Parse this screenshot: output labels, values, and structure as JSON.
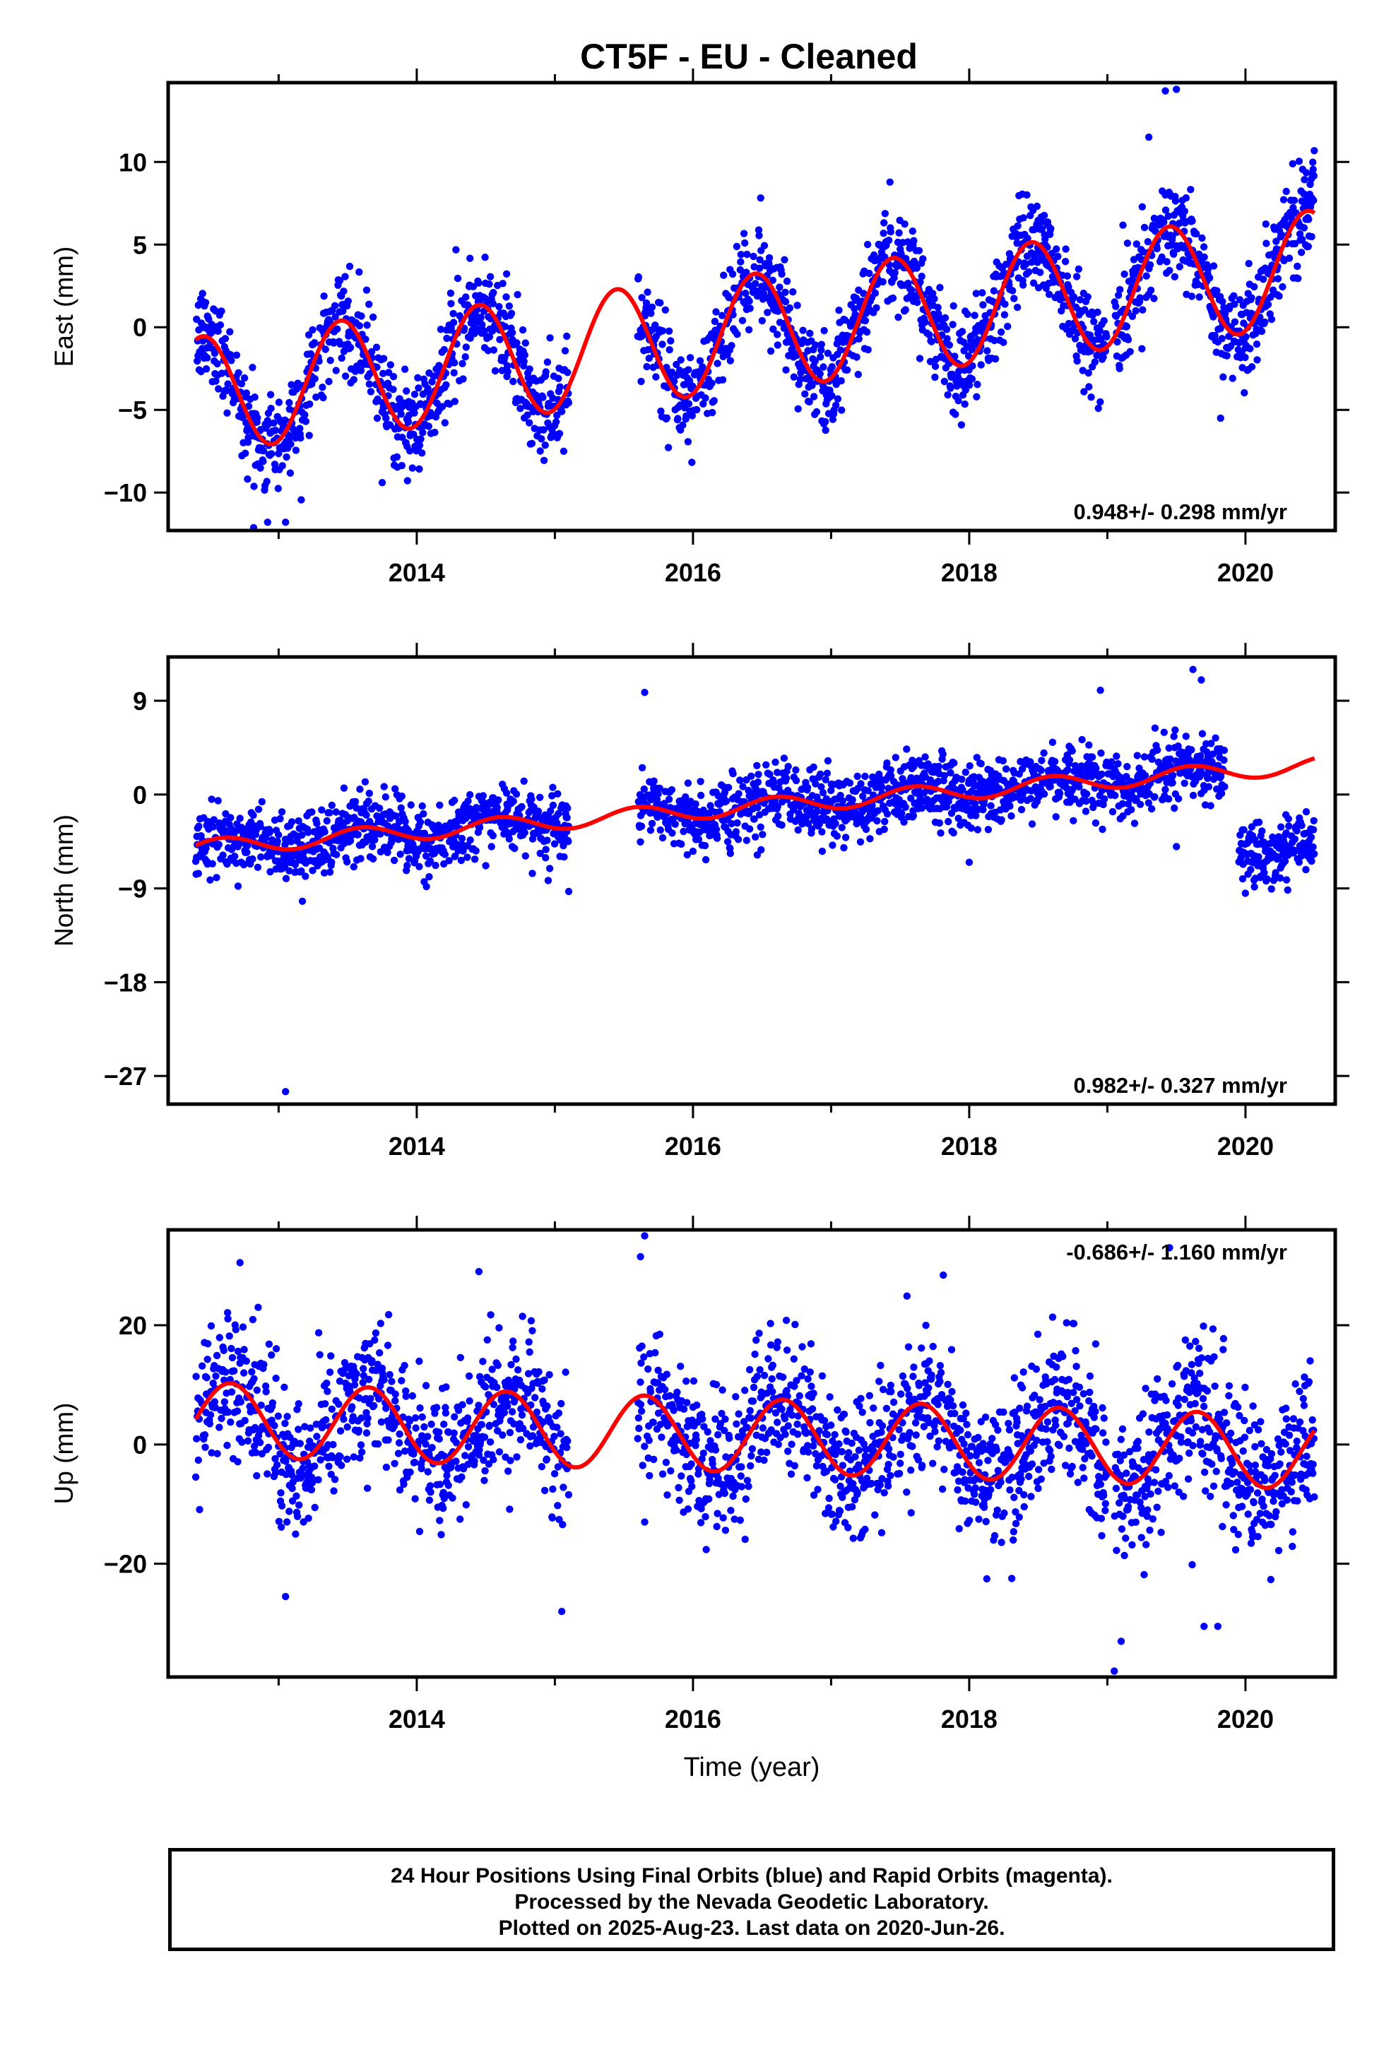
{
  "title": "CT5F  - EU - Cleaned",
  "xlabel": "Time (year)",
  "footer": {
    "line1": "24 Hour Positions Using Final Orbits (blue) and Rapid Orbits (magenta).",
    "line2": "Processed by the Nevada Geodetic Laboratory.",
    "line3": "Plotted on 2025-Aug-23. Last data on 2020-Jun-26."
  },
  "colors": {
    "points": "#0000ff",
    "fit": "#ff0000",
    "axes": "#000000"
  },
  "chart_data": [
    {
      "type": "scatter",
      "ylabel": "East (mm)",
      "rate": "0.948+/- 0.298 mm/yr",
      "rate_position": "bottom-right",
      "xlim": [
        2012.2,
        2020.65
      ],
      "ylim": [
        -12.3,
        14.8
      ],
      "xticks": [
        2014,
        2016,
        2018,
        2020
      ],
      "yticks": [
        -10,
        -5,
        0,
        5,
        10
      ],
      "yticklabels": [
        "−10",
        "−5",
        "0",
        "5",
        "10"
      ],
      "fit": {
        "offset": -0.3,
        "rate": 0.948,
        "amplitude": 3.5,
        "peak_phase": 0.45,
        "x_start": 2012.4,
        "x_end": 2020.5
      },
      "scatter_segments": [
        [
          2012.4,
          2015.1
        ],
        [
          2015.6,
          2019.0
        ],
        [
          2019.05,
          2020.5
        ]
      ],
      "scatter_sigma": 1.5,
      "outliers": [
        {
          "x": 2012.92,
          "y": -11.8
        },
        {
          "x": 2013.05,
          "y": -11.8
        },
        {
          "x": 2019.42,
          "y": 14.3
        },
        {
          "x": 2019.5,
          "y": 14.4
        },
        {
          "x": 2019.3,
          "y": 11.5
        },
        {
          "x": 2019.82,
          "y": -5.5
        },
        {
          "x": 2013.75,
          "y": -9.4
        },
        {
          "x": 2019.25,
          "y": -1.3
        }
      ]
    },
    {
      "type": "scatter",
      "ylabel": "North (mm)",
      "rate": "0.982+/- 0.327 mm/yr",
      "rate_position": "bottom-right",
      "xlim": [
        2012.2,
        2020.65
      ],
      "ylim": [
        -29.7,
        13.2
      ],
      "xticks": [
        2014,
        2016,
        2018,
        2020
      ],
      "yticks": [
        -27,
        -18,
        -9,
        0,
        9
      ],
      "yticklabels": [
        "−27",
        "−18",
        "−9",
        "0",
        "9"
      ],
      "fit": {
        "offset": -1.2,
        "rate": 0.982,
        "amplitude": 0.8,
        "peak_phase": 0.6,
        "x_start": 2012.4,
        "x_end": 2020.5
      },
      "scatter_segments": [
        [
          2012.4,
          2015.1
        ],
        [
          2015.6,
          2019.85
        ],
        [
          2019.95,
          2020.5
        ]
      ],
      "scatter_sigma": 1.6,
      "level_shift": {
        "x": 2019.92,
        "amount": -7.5
      },
      "outliers": [
        {
          "x": 2013.05,
          "y": -28.5
        },
        {
          "x": 2015.65,
          "y": 9.8
        },
        {
          "x": 2018.0,
          "y": -6.5
        },
        {
          "x": 2018.95,
          "y": 10.0
        },
        {
          "x": 2019.62,
          "y": 12.0
        },
        {
          "x": 2019.68,
          "y": 11.0
        },
        {
          "x": 2015.1,
          "y": -9.3
        },
        {
          "x": 2019.5,
          "y": -5.0
        }
      ]
    },
    {
      "type": "scatter",
      "ylabel": "Up (mm)",
      "rate": "-0.686+/- 1.160 mm/yr",
      "rate_position": "top-right",
      "xlim": [
        2012.2,
        2020.65
      ],
      "ylim": [
        -39.0,
        36.0
      ],
      "xticks": [
        2014,
        2016,
        2018,
        2020
      ],
      "yticks": [
        -20,
        0,
        20
      ],
      "yticklabels": [
        "−20",
        "0",
        "20"
      ],
      "fit": {
        "offset": 1.5,
        "rate": -0.686,
        "amplitude": 6.2,
        "peak_phase": 0.65,
        "x_start": 2012.4,
        "x_end": 2020.5
      },
      "scatter_segments": [
        [
          2012.4,
          2015.1
        ],
        [
          2015.6,
          2019.0
        ],
        [
          2019.05,
          2020.5
        ]
      ],
      "scatter_sigma": 6.0,
      "outliers": [
        {
          "x": 2015.65,
          "y": 35.0
        },
        {
          "x": 2015.62,
          "y": 31.5
        },
        {
          "x": 2012.72,
          "y": 30.5
        },
        {
          "x": 2013.05,
          "y": -25.5
        },
        {
          "x": 2015.05,
          "y": -28.0
        },
        {
          "x": 2019.05,
          "y": -38.0
        },
        {
          "x": 2019.1,
          "y": -33.0
        },
        {
          "x": 2019.7,
          "y": -30.5
        },
        {
          "x": 2019.8,
          "y": -30.5
        },
        {
          "x": 2019.45,
          "y": 33.0
        },
        {
          "x": 2014.45,
          "y": 29.0
        },
        {
          "x": 2015.65,
          "y": -13.0
        }
      ]
    }
  ]
}
